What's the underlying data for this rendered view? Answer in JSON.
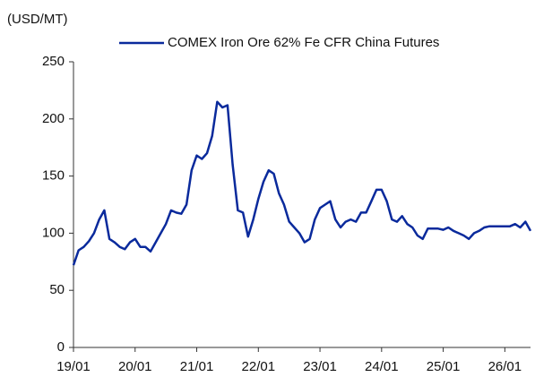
{
  "chart_data": {
    "type": "line",
    "unit_label": "(USD/MT)",
    "categories": [
      "19/01",
      null,
      null,
      null,
      null,
      null,
      null,
      null,
      null,
      null,
      null,
      null,
      "20/01",
      null,
      null,
      null,
      null,
      null,
      null,
      null,
      null,
      null,
      null,
      null,
      "21/01",
      null,
      null,
      null,
      null,
      null,
      null,
      null,
      null,
      null,
      null,
      null,
      "22/01",
      null,
      null,
      null,
      null,
      null,
      null,
      null,
      null,
      null,
      null,
      null,
      "23/01",
      null,
      null,
      null,
      null,
      null,
      null,
      null,
      null,
      null,
      null,
      null,
      "24/01",
      null,
      null,
      null,
      null,
      null,
      null,
      null,
      null,
      null,
      null,
      null,
      "25/01",
      null,
      null,
      null,
      null,
      null,
      null,
      null,
      null,
      null,
      null,
      null,
      "26/01",
      null,
      null,
      null,
      null,
      null
    ],
    "series": [
      {
        "name": "COMEX Iron Ore 62% Fe CFR China Futures",
        "color": "#0a2a9c",
        "values": [
          72,
          85,
          88,
          93,
          100,
          112,
          120,
          95,
          92,
          88,
          86,
          92,
          95,
          88,
          88,
          84,
          92,
          100,
          108,
          120,
          118,
          117,
          125,
          155,
          168,
          165,
          170,
          185,
          215,
          210,
          212,
          160,
          120,
          118,
          97,
          112,
          130,
          145,
          155,
          152,
          135,
          125,
          110,
          105,
          100,
          92,
          95,
          112,
          122,
          125,
          128,
          112,
          105,
          110,
          112,
          110,
          118,
          118,
          128,
          138,
          138,
          128,
          112,
          110,
          115,
          108,
          105,
          98,
          95,
          104,
          104,
          104,
          103,
          105,
          102,
          100,
          98,
          95,
          100,
          102,
          105,
          106,
          106,
          106,
          106,
          106,
          108,
          105,
          110,
          102
        ]
      }
    ],
    "ylim": [
      0,
      250
    ],
    "yticks": [
      0,
      50,
      100,
      150,
      200,
      250
    ],
    "grid": false
  }
}
